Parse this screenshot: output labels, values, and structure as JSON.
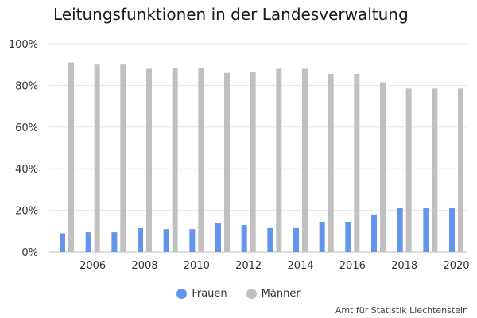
{
  "chart_data": {
    "type": "bar",
    "title": "Leitungsfunktionen in der Landesverwaltung",
    "xlabel": "",
    "ylabel": "",
    "ylim": [
      0,
      100
    ],
    "y_ticks": [
      "0%",
      "20%",
      "40%",
      "60%",
      "80%",
      "100%"
    ],
    "x_ticks": [
      "2006",
      "2008",
      "2010",
      "2012",
      "2014",
      "2016",
      "2018",
      "2020"
    ],
    "categories": [
      "2005",
      "2006",
      "2007",
      "2008",
      "2009",
      "2010",
      "2011",
      "2012",
      "2013",
      "2014",
      "2015",
      "2016",
      "2017",
      "2018",
      "2019",
      "2020"
    ],
    "series": [
      {
        "name": "Frauen",
        "color": "#6495ED",
        "values": [
          9,
          9.5,
          9.5,
          11.5,
          11,
          11,
          14,
          13,
          11.5,
          11.5,
          14.5,
          14.5,
          18,
          21,
          21,
          21
        ]
      },
      {
        "name": "Männer",
        "color": "#C0C0C0",
        "values": [
          91,
          90,
          90,
          88,
          88.5,
          88.5,
          86,
          86.5,
          88,
          88,
          85.5,
          85.5,
          81.5,
          78.5,
          78.5,
          78.5
        ]
      }
    ],
    "grid": true,
    "legend_position": "bottom"
  },
  "source": "Amt für Statistik Liechtenstein"
}
